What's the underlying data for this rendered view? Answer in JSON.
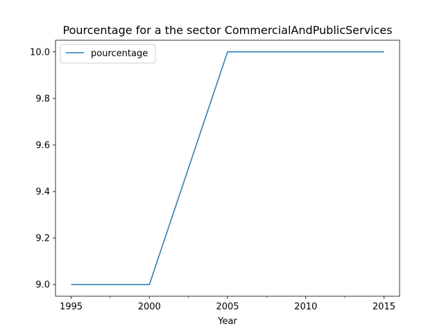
{
  "chart_data": {
    "type": "line",
    "title": "Pourcentage for a the sector CommercialAndPublicServices",
    "xlabel": "Year",
    "ylabel": "",
    "x": [
      1995,
      2000,
      2005,
      2010,
      2015
    ],
    "series": [
      {
        "name": "pourcentage",
        "values": [
          9.0,
          9.0,
          10.0,
          10.0,
          10.0
        ],
        "color": "#1f77b4"
      }
    ],
    "xticks": [
      1995,
      2000,
      2005,
      2010,
      2015
    ],
    "xtick_labels": [
      "1995",
      "2000",
      "2005",
      "2010",
      "2015"
    ],
    "minor_xticks": [
      1997.5,
      2002.5,
      2007.5,
      2012.5
    ],
    "yticks": [
      9.0,
      9.2,
      9.4,
      9.6,
      9.8,
      10.0
    ],
    "ytick_labels": [
      "9.0",
      "9.2",
      "9.4",
      "9.6",
      "9.8",
      "10.0"
    ],
    "xlim": [
      1994,
      2016
    ],
    "ylim": [
      8.95,
      10.05
    ],
    "grid": false,
    "legend": {
      "position": "top-left"
    }
  }
}
